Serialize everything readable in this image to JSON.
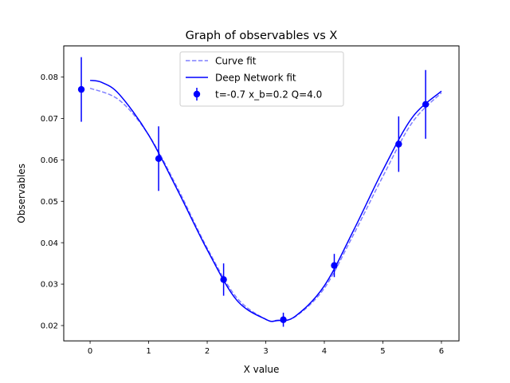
{
  "chart_data": {
    "type": "line",
    "title": "Graph of observables vs X",
    "xlabel": "X value",
    "ylabel": "Observables",
    "xlim": [
      -0.45,
      6.3
    ],
    "ylim": [
      0.0163,
      0.0875
    ],
    "xticks": [
      0,
      1,
      2,
      3,
      4,
      5,
      6
    ],
    "xtick_labels": [
      "0",
      "1",
      "2",
      "3",
      "4",
      "5",
      "6"
    ],
    "yticks": [
      0.02,
      0.03,
      0.04,
      0.05,
      0.06,
      0.07,
      0.08
    ],
    "ytick_labels": [
      "0.02",
      "0.03",
      "0.04",
      "0.05",
      "0.06",
      "0.07",
      "0.08"
    ],
    "grid": false,
    "legend_position": "top-center",
    "series": [
      {
        "name": "Curve fit",
        "kind": "line",
        "style": "dashed",
        "color": "#7f7fff",
        "x": [
          0,
          0.5,
          1,
          1.5,
          2,
          2.5,
          3,
          3.2,
          3.5,
          4,
          4.5,
          5,
          5.5,
          6
        ],
        "y": [
          0.0773,
          0.0744,
          0.066,
          0.053,
          0.0387,
          0.0268,
          0.0215,
          0.0213,
          0.0221,
          0.029,
          0.042,
          0.056,
          0.069,
          0.0762
        ]
      },
      {
        "name": "Deep Network fit",
        "kind": "line",
        "style": "solid",
        "color": "#0000ff",
        "x": [
          0,
          0.2,
          0.5,
          1,
          1.5,
          2,
          2.5,
          3,
          3.2,
          3.5,
          4,
          4.5,
          5,
          5.5,
          6
        ],
        "y": [
          0.0792,
          0.0787,
          0.0758,
          0.066,
          0.0525,
          0.0383,
          0.0262,
          0.0215,
          0.0212,
          0.0222,
          0.0296,
          0.043,
          0.0575,
          0.0702,
          0.0766
        ]
      },
      {
        "name": "t=-0.7 x_b=0.2 Q=4.0",
        "kind": "errorbar",
        "color": "#0000ff",
        "x": [
          -0.15,
          1.17,
          2.28,
          3.3,
          4.17,
          5.27,
          5.73
        ],
        "y": [
          0.077,
          0.0603,
          0.0311,
          0.0214,
          0.0345,
          0.0638,
          0.0734
        ],
        "yerr": [
          0.0078,
          0.0078,
          0.0039,
          0.0017,
          0.0028,
          0.0067,
          0.0083
        ]
      }
    ]
  }
}
